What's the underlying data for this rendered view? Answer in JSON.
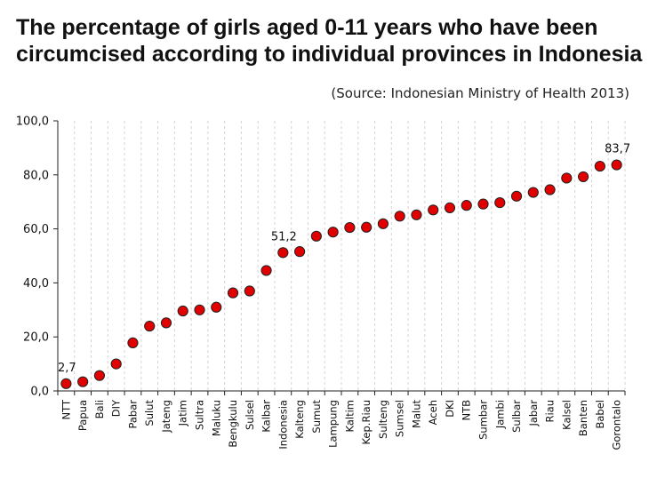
{
  "header": {
    "title_line1": "The percentage of girls aged 0-11 years who have been",
    "title_line2": "circumcised according to individual provinces in Indonesia",
    "source": "(Source: Indonesian Ministry of Health 2013)"
  },
  "chart_data": {
    "type": "scatter",
    "title": "The percentage of girls aged 0-11 years who have been circumcised according to individual provinces in Indonesia",
    "subtitle": "(Source: Indonesian Ministry of Health 2013)",
    "categories": [
      "NTT",
      "Papua",
      "Bali",
      "DIY",
      "Pabar",
      "Sulut",
      "Jateng",
      "Jatim",
      "Sultra",
      "Maluku",
      "Bengkulu",
      "Sulsel",
      "Kalbar",
      "Indonesia",
      "Kalteng",
      "Sumut",
      "Lampung",
      "Kaltim",
      "Kep.Riau",
      "Sulteng",
      "Sumsel",
      "Malut",
      "Aceh",
      "DKI",
      "NTB",
      "Sumbar",
      "Jambi",
      "Sulbar",
      "Jabar",
      "Riau",
      "Kalsel",
      "Banten",
      "Babel",
      "Gorontalo"
    ],
    "values": [
      2.7,
      3.4,
      5.7,
      10.0,
      17.8,
      24.0,
      25.2,
      29.6,
      30.0,
      31.0,
      36.3,
      37.0,
      44.6,
      51.2,
      51.6,
      57.3,
      58.8,
      60.5,
      60.6,
      61.9,
      64.7,
      65.2,
      67.0,
      67.8,
      68.7,
      69.2,
      69.7,
      72.1,
      73.5,
      74.5,
      78.8,
      79.3,
      83.2,
      83.7
    ],
    "yticks": [
      "0,0",
      "20,0",
      "40,0",
      "60,0",
      "80,0",
      "100,0"
    ],
    "ytick_values": [
      0,
      20,
      40,
      60,
      80,
      100
    ],
    "ylim": [
      0,
      100
    ],
    "data_labels": [
      {
        "category": "NTT",
        "text": "2,7"
      },
      {
        "category": "Indonesia",
        "text": "51,2"
      },
      {
        "category": "Gorontalo",
        "text": "83,7"
      }
    ],
    "marker_color": "#e00000",
    "marker_edge_color": "#222222",
    "grid": true,
    "legend": "none"
  }
}
